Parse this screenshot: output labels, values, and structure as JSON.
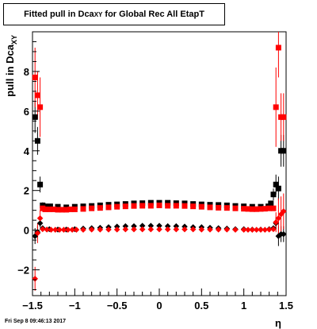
{
  "chart_data": {
    "type": "scatter",
    "title": "Fitted pull in Dca",
    "title_sub": "XY",
    "title_suffix": " for Global Rec All EtapT",
    "xlabel": "η",
    "ylabel": "pull in Dca",
    "ylabel_sub": "XY",
    "xlim": [
      -1.5,
      1.5
    ],
    "ylim": [
      -3.3,
      10.0
    ],
    "x_ticks": [
      "−1.5",
      "−1",
      "−0.5",
      "0",
      "0.5",
      "1",
      "1.5"
    ],
    "x_tick_values": [
      -1.5,
      -1,
      -0.5,
      0,
      0.5,
      1,
      1.5
    ],
    "y_ticks": [
      "−2",
      "0",
      "2",
      "4",
      "6",
      "8"
    ],
    "y_tick_values": [
      -2,
      0,
      2,
      4,
      6,
      8
    ],
    "grid": false,
    "colors": {
      "black": "#000000",
      "red": "#ff0000"
    },
    "series": [
      {
        "marker": "square",
        "color": "#000000",
        "description": "mean",
        "x": [
          -1.47,
          -1.44,
          -1.41,
          -1.38,
          -1.35,
          -1.29,
          -1.2,
          -1.1,
          -1.0,
          -0.9,
          -0.8,
          -0.7,
          -0.6,
          -0.5,
          -0.4,
          -0.3,
          -0.2,
          -0.1,
          0.0,
          0.1,
          0.2,
          0.3,
          0.4,
          0.5,
          0.6,
          0.7,
          0.8,
          0.9,
          1.0,
          1.1,
          1.2,
          1.29,
          1.32,
          1.35,
          1.38,
          1.41,
          1.44,
          1.47
        ],
        "y": [
          5.7,
          4.5,
          2.3,
          1.25,
          1.2,
          1.2,
          1.18,
          1.15,
          1.18,
          1.2,
          1.22,
          1.25,
          1.28,
          1.3,
          1.32,
          1.35,
          1.36,
          1.38,
          1.38,
          1.38,
          1.36,
          1.35,
          1.32,
          1.3,
          1.28,
          1.27,
          1.25,
          1.22,
          1.2,
          1.18,
          1.18,
          1.2,
          1.35,
          1.8,
          2.3,
          2.1,
          4.0,
          4.0
        ],
        "yerr": [
          0.8,
          0.7,
          0.4,
          0.15,
          0.08,
          0.05,
          0.04,
          0.04,
          0.04,
          0.04,
          0.04,
          0.04,
          0.04,
          0.04,
          0.04,
          0.04,
          0.04,
          0.04,
          0.04,
          0.04,
          0.04,
          0.04,
          0.04,
          0.04,
          0.04,
          0.04,
          0.04,
          0.04,
          0.04,
          0.04,
          0.04,
          0.05,
          0.1,
          0.3,
          0.5,
          0.6,
          0.8,
          0.8
        ]
      },
      {
        "marker": "square",
        "color": "#ff0000",
        "description": "mean",
        "x": [
          -1.47,
          -1.44,
          -1.41,
          -1.38,
          -1.35,
          -1.3,
          -1.25,
          -1.2,
          -1.15,
          -1.1,
          -1.05,
          -1.0,
          -0.9,
          -0.8,
          -0.7,
          -0.6,
          -0.5,
          -0.4,
          -0.3,
          -0.2,
          -0.1,
          0.0,
          0.1,
          0.2,
          0.3,
          0.4,
          0.5,
          0.6,
          0.7,
          0.8,
          0.9,
          1.0,
          1.05,
          1.1,
          1.15,
          1.2,
          1.25,
          1.3,
          1.35,
          1.38,
          1.41,
          1.44,
          1.47
        ],
        "y": [
          7.7,
          6.8,
          6.2,
          1.1,
          1.05,
          1.05,
          1.05,
          1.03,
          1.03,
          1.03,
          1.05,
          1.05,
          1.07,
          1.1,
          1.12,
          1.15,
          1.18,
          1.2,
          1.22,
          1.23,
          1.23,
          1.25,
          1.23,
          1.23,
          1.22,
          1.2,
          1.18,
          1.15,
          1.13,
          1.12,
          1.1,
          1.08,
          1.07,
          1.06,
          1.06,
          1.07,
          1.08,
          1.1,
          1.1,
          6.2,
          9.2,
          5.7,
          5.7
        ],
        "yerr": [
          1.5,
          1.2,
          1.5,
          0.1,
          0.06,
          0.04,
          0.04,
          0.04,
          0.04,
          0.04,
          0.04,
          0.04,
          0.04,
          0.04,
          0.04,
          0.04,
          0.04,
          0.04,
          0.04,
          0.04,
          0.04,
          0.04,
          0.04,
          0.04,
          0.04,
          0.04,
          0.04,
          0.04,
          0.04,
          0.04,
          0.04,
          0.04,
          0.04,
          0.04,
          0.04,
          0.04,
          0.04,
          0.06,
          0.1,
          2.0,
          1.5,
          1.2,
          1.2
        ]
      },
      {
        "marker": "diamond",
        "color": "#000000",
        "description": "sigma",
        "x": [
          -1.47,
          -1.44,
          -1.41,
          -1.38,
          -1.3,
          -1.2,
          -1.1,
          -1.0,
          -0.9,
          -0.8,
          -0.7,
          -0.6,
          -0.5,
          -0.4,
          -0.3,
          -0.2,
          -0.1,
          0.0,
          0.1,
          0.2,
          0.3,
          0.4,
          0.5,
          0.6,
          0.7,
          0.8,
          0.9,
          1.0,
          1.1,
          1.2,
          1.3,
          1.35,
          1.38,
          1.41,
          1.44,
          1.47
        ],
        "y": [
          -0.3,
          -0.1,
          0.35,
          0.1,
          0.05,
          0.03,
          0.03,
          0.05,
          0.08,
          0.1,
          0.12,
          0.15,
          0.18,
          0.2,
          0.2,
          0.22,
          0.22,
          0.22,
          0.2,
          0.2,
          0.18,
          0.15,
          0.15,
          0.12,
          0.1,
          0.08,
          0.05,
          0.05,
          0.03,
          0.03,
          0.05,
          0.1,
          0.35,
          -0.3,
          -0.2,
          -0.2
        ],
        "yerr": [
          0.4,
          0.3,
          0.2,
          0.06,
          0.03,
          0.02,
          0.02,
          0.02,
          0.02,
          0.02,
          0.02,
          0.02,
          0.02,
          0.02,
          0.02,
          0.02,
          0.02,
          0.02,
          0.02,
          0.02,
          0.02,
          0.02,
          0.02,
          0.02,
          0.02,
          0.02,
          0.02,
          0.02,
          0.02,
          0.02,
          0.03,
          0.06,
          0.3,
          0.5,
          0.4,
          0.4
        ]
      },
      {
        "marker": "diamond",
        "color": "#ff0000",
        "description": "sigma",
        "x": [
          -1.47,
          -1.44,
          -1.41,
          -1.38,
          -1.33,
          -1.28,
          -1.23,
          -1.18,
          -1.13,
          -1.08,
          -1.03,
          -0.98,
          -0.9,
          -0.8,
          -0.7,
          -0.6,
          -0.5,
          -0.4,
          -0.3,
          -0.2,
          -0.1,
          0.0,
          0.1,
          0.2,
          0.3,
          0.4,
          0.5,
          0.6,
          0.7,
          0.8,
          0.9,
          1.0,
          1.05,
          1.1,
          1.15,
          1.2,
          1.25,
          1.3,
          1.35,
          1.38,
          1.41,
          1.44,
          1.47
        ],
        "y": [
          -2.45,
          -0.15,
          0.6,
          0.05,
          0.03,
          0.02,
          0.02,
          0.02,
          0.02,
          0.02,
          0.02,
          0.02,
          0.02,
          0.03,
          0.03,
          0.03,
          0.03,
          0.04,
          0.04,
          0.04,
          0.04,
          0.04,
          0.04,
          0.04,
          0.04,
          0.04,
          0.03,
          0.03,
          0.03,
          0.03,
          0.02,
          0.02,
          0.02,
          0.02,
          0.02,
          0.02,
          0.02,
          0.03,
          0.05,
          0.4,
          0.6,
          0.8,
          0.95
        ],
        "yerr": [
          0.6,
          0.5,
          0.4,
          0.05,
          0.02,
          0.02,
          0.02,
          0.02,
          0.02,
          0.02,
          0.02,
          0.02,
          0.02,
          0.02,
          0.02,
          0.02,
          0.02,
          0.02,
          0.02,
          0.02,
          0.02,
          0.02,
          0.02,
          0.02,
          0.02,
          0.02,
          0.02,
          0.02,
          0.02,
          0.02,
          0.02,
          0.02,
          0.02,
          0.02,
          0.02,
          0.02,
          0.02,
          0.03,
          0.05,
          0.5,
          1.0,
          0.9,
          0.9
        ]
      }
    ]
  },
  "footer": {
    "timestamp": "Fri Sep  8 09:46:13 2017"
  }
}
